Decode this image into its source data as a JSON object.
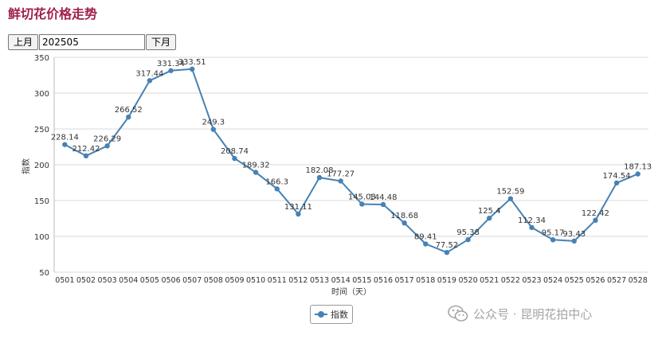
{
  "page": {
    "title": "鲜切花价格走势"
  },
  "month_bar": {
    "prev_label": "上月",
    "month_value": "202505",
    "next_label": "下月"
  },
  "watermark": {
    "text": "公众号 · 昆明花拍中心",
    "icon": "wechat-icon"
  },
  "colors": {
    "title": "#a0204a",
    "series": "#4682b4",
    "grid": "#d9d9d9"
  },
  "chart_data": {
    "type": "line",
    "title": "",
    "xlabel": "时间（天）",
    "ylabel": "指数",
    "ylim": [
      50,
      350
    ],
    "yticks": [
      50,
      100,
      150,
      200,
      250,
      300,
      350
    ],
    "grid": true,
    "legend": "bottom-center",
    "categories": [
      "0501",
      "0502",
      "0503",
      "0504",
      "0505",
      "0506",
      "0507",
      "0508",
      "0509",
      "0510",
      "0511",
      "0512",
      "0513",
      "0514",
      "0515",
      "0516",
      "0517",
      "0518",
      "0519",
      "0520",
      "0521",
      "0522",
      "0523",
      "0524",
      "0525",
      "0526",
      "0527",
      "0528"
    ],
    "series": [
      {
        "name": "指数",
        "values": [
          228.14,
          212.42,
          226.29,
          266.52,
          317.44,
          331.34,
          333.51,
          249.3,
          208.74,
          189.32,
          166.3,
          131.11,
          182.08,
          177.27,
          145.03,
          144.48,
          118.68,
          89.41,
          77.52,
          95.38,
          125.4,
          152.59,
          112.34,
          95.17,
          93.43,
          122.42,
          174.54,
          187.13
        ],
        "labels": [
          "228.14",
          "212.42",
          "226.29",
          "266.52",
          "317.44",
          "331.34",
          "333.51",
          "249.3",
          "208.74",
          "189.32",
          "166.3",
          "131.11",
          "182.08",
          "177.27",
          "145.03",
          "144.48",
          "118.68",
          "89.41",
          "77.52",
          "95.38",
          "125.4",
          "152.59",
          "112.34",
          "95.17",
          "93.43",
          "122.42",
          "174.54",
          "187.13"
        ]
      }
    ]
  }
}
